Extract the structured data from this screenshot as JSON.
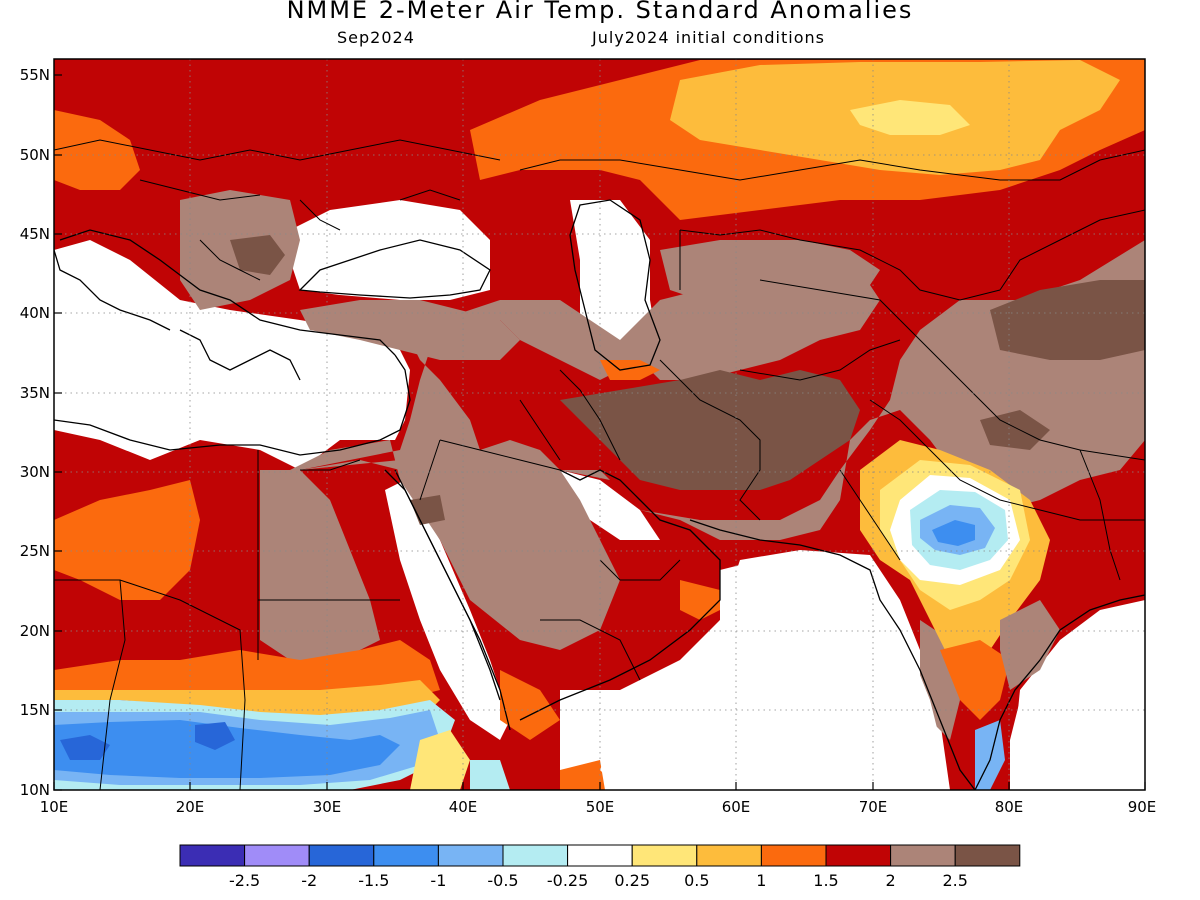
{
  "title": "NMME 2-Meter Air Temp. Standard Anomalies",
  "subtitle_left": "Sep2024",
  "subtitle_right": "July2024 initial conditions",
  "map": {
    "lon_labels": [
      "10E",
      "20E",
      "30E",
      "40E",
      "50E",
      "60E",
      "70E",
      "80E",
      "90E"
    ],
    "lat_labels": [
      "55N",
      "50N",
      "45N",
      "40N",
      "35N",
      "30N",
      "25N",
      "20N",
      "15N",
      "10N"
    ]
  },
  "colorbar": {
    "colors": [
      "#3b2db4",
      "#a08cf8",
      "#2766d8",
      "#3d8ef0",
      "#78b4f4",
      "#b4ecf2",
      "#ffffff",
      "#ffe678",
      "#fdbc3c",
      "#fb6a0e",
      "#c00405",
      "#ac8478",
      "#7a5446"
    ],
    "labels": [
      "-2.5",
      "-2",
      "-1.5",
      "-1",
      "-0.5",
      "-0.25",
      "0.25",
      "0.5",
      "1",
      "1.5",
      "2",
      "2.5"
    ]
  },
  "legend_colors": {
    "deep_red": "#c00405",
    "orange": "#fb6a0e",
    "light_orange": "#fdbc3c",
    "yellow": "#ffe678",
    "brown": "#ac8478",
    "dark_brown": "#7a5446",
    "blue": "#3d8ef0",
    "light_blue": "#78b4f4",
    "cyan": "#b4ecf2"
  }
}
